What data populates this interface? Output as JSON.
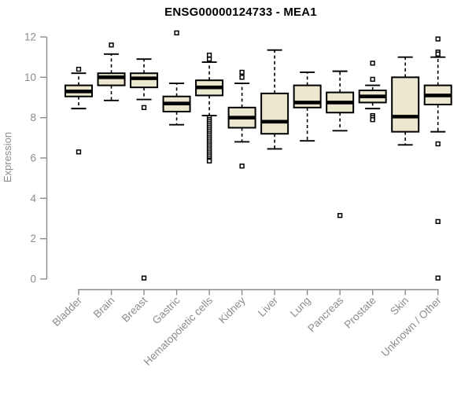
{
  "chart_data": {
    "type": "boxplot",
    "title": "ENSG00000124733 - MEA1",
    "xlabel": "",
    "ylabel": "Expression",
    "ylim": [
      0,
      12
    ],
    "yticks": [
      0,
      2,
      4,
      6,
      8,
      10,
      12
    ],
    "grid": false,
    "legend": "none",
    "categories": [
      "Bladder",
      "Brain",
      "Breast",
      "Gastric",
      "Hematopoietic cells",
      "Kidney",
      "Liver",
      "Lung",
      "Pancreas",
      "Prostate",
      "Skin",
      "Unknown / Other"
    ],
    "series": [
      {
        "category": "Bladder",
        "low": 8.45,
        "q1": 9.05,
        "median": 9.3,
        "q3": 9.6,
        "high": 10.2,
        "outliers": [
          10.4,
          6.3
        ]
      },
      {
        "category": "Brain",
        "low": 8.85,
        "q1": 9.6,
        "median": 10.0,
        "q3": 10.2,
        "high": 11.15,
        "outliers": [
          11.6
        ]
      },
      {
        "category": "Breast",
        "low": 8.9,
        "q1": 9.5,
        "median": 9.95,
        "q3": 10.2,
        "high": 10.9,
        "outliers": [
          8.5,
          0.05
        ]
      },
      {
        "category": "Gastric",
        "low": 7.65,
        "q1": 8.3,
        "median": 8.7,
        "q3": 9.05,
        "high": 9.7,
        "outliers": [
          12.2
        ]
      },
      {
        "category": "Hematopoietic cells",
        "low": 8.1,
        "q1": 9.1,
        "median": 9.5,
        "q3": 9.85,
        "high": 10.75,
        "outliers": [
          11.1,
          10.9,
          8.0,
          7.9,
          7.8,
          7.7,
          7.6,
          7.5,
          7.4,
          7.3,
          7.2,
          7.1,
          7.0,
          6.9,
          6.8,
          6.7,
          6.6,
          6.5,
          6.4,
          6.3,
          6.2,
          6.1,
          6.0,
          5.9,
          5.85
        ]
      },
      {
        "category": "Kidney",
        "low": 6.8,
        "q1": 7.5,
        "median": 8.0,
        "q3": 8.5,
        "high": 9.7,
        "outliers": [
          10.25,
          10.0,
          5.6
        ]
      },
      {
        "category": "Liver",
        "low": 6.45,
        "q1": 7.2,
        "median": 7.8,
        "q3": 9.2,
        "high": 11.35,
        "outliers": []
      },
      {
        "category": "Lung",
        "low": 6.85,
        "q1": 8.5,
        "median": 8.75,
        "q3": 9.6,
        "high": 10.25,
        "outliers": []
      },
      {
        "category": "Pancreas",
        "low": 7.35,
        "q1": 8.25,
        "median": 8.75,
        "q3": 9.25,
        "high": 10.3,
        "outliers": [
          3.15
        ]
      },
      {
        "category": "Prostate",
        "low": 8.45,
        "q1": 8.75,
        "median": 9.05,
        "q3": 9.35,
        "high": 9.6,
        "outliers": [
          10.7,
          9.9,
          8.1,
          8.0,
          7.9
        ]
      },
      {
        "category": "Skin",
        "low": 6.65,
        "q1": 7.3,
        "median": 8.05,
        "q3": 10.0,
        "high": 11.0,
        "outliers": []
      },
      {
        "category": "Unknown / Other",
        "low": 7.3,
        "q1": 8.65,
        "median": 9.1,
        "q3": 9.6,
        "high": 11.0,
        "outliers": [
          11.9,
          11.25,
          11.15,
          6.7,
          2.85,
          0.05
        ]
      }
    ],
    "colors": {
      "box_fill": "#ece7cf",
      "box_border": "#000000",
      "median": "#000000",
      "whisker": "#000000",
      "outlier_fill": "#ffffff",
      "axis": "#8c8c8c",
      "tick_text": "#8c8c8c",
      "title": "#000000"
    }
  }
}
